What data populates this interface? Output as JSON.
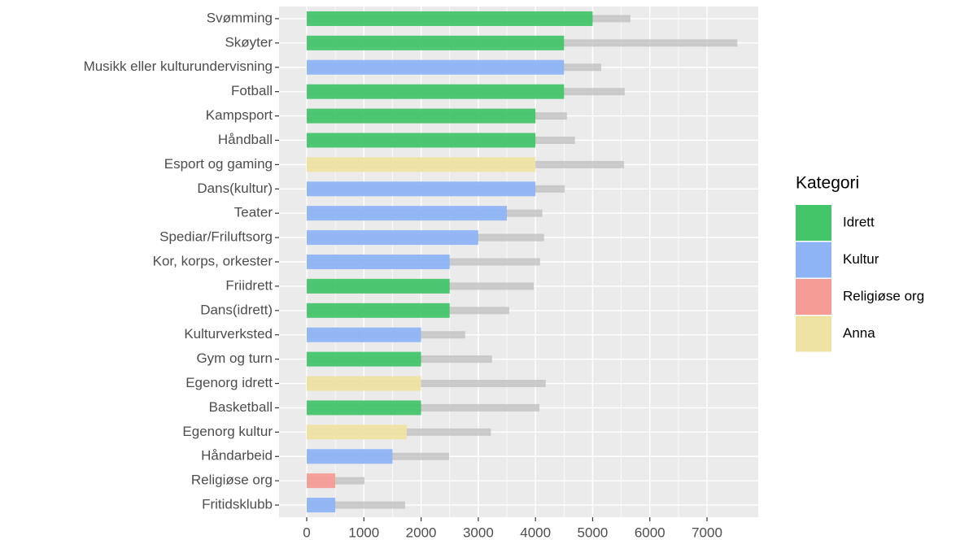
{
  "chart_data": {
    "type": "bar",
    "orientation": "horizontal",
    "categories": [
      "Svømming",
      "Skøyter",
      "Musikk eller kulturundervisning",
      "Fotball",
      "Kampsport",
      "Håndball",
      "Esport og gaming",
      "Dans(kultur)",
      "Teater",
      "Spediar/Friluftsorg",
      "Kor, korps, orkester",
      "Friidrett",
      "Dans(idrett)",
      "Kulturverksted",
      "Gym og turn",
      "Egenorg idrett",
      "Basketball",
      "Egenorg kultur",
      "Håndarbeid",
      "Religiøse org",
      "Fritidsklubb"
    ],
    "values": [
      5000,
      4500,
      4500,
      4500,
      4000,
      4000,
      4000,
      4000,
      3500,
      3000,
      2500,
      2500,
      2500,
      2000,
      2000,
      2000,
      2000,
      1750,
      1500,
      500,
      500
    ],
    "groups": [
      "Idrett",
      "Idrett",
      "Kultur",
      "Idrett",
      "Idrett",
      "Idrett",
      "Anna",
      "Kultur",
      "Kultur",
      "Kultur",
      "Kultur",
      "Idrett",
      "Idrett",
      "Kultur",
      "Idrett",
      "Anna",
      "Idrett",
      "Anna",
      "Kultur",
      "Religiøse org",
      "Kultur"
    ],
    "reference_values": [
      5660,
      7530,
      5150,
      5560,
      4550,
      4690,
      5550,
      4510,
      4120,
      4150,
      4080,
      3970,
      3540,
      2770,
      3240,
      4180,
      4070,
      3220,
      2490,
      1010,
      1720
    ],
    "reference_color": "#bebebe",
    "xlim": [
      -484,
      7896
    ],
    "xticks": [
      0,
      1000,
      2000,
      3000,
      4000,
      5000,
      6000,
      7000
    ],
    "grid": true,
    "legend": {
      "title": "Kategori",
      "position": "right",
      "entries": [
        {
          "name": "Idrett",
          "color": "#45c56a"
        },
        {
          "name": "Kultur",
          "color": "#8fb4f5"
        },
        {
          "name": "Religiøse org",
          "color": "#f59c96"
        },
        {
          "name": "Anna",
          "color": "#efe3a4"
        }
      ]
    }
  }
}
